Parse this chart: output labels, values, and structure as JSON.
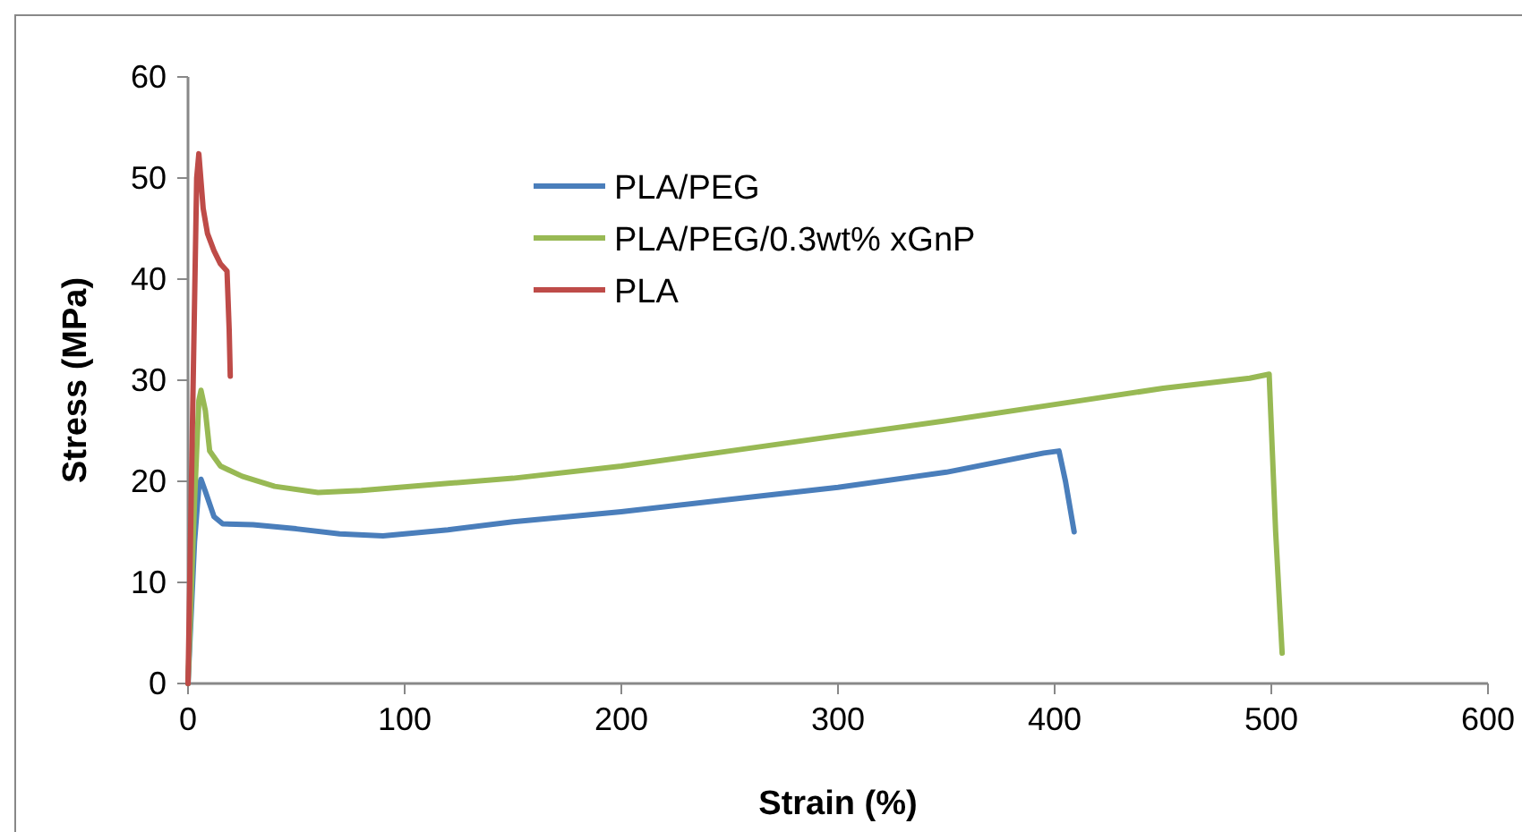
{
  "chart_data": {
    "type": "line",
    "xlabel": "Strain (%)",
    "ylabel": "Stress (MPa)",
    "xlim": [
      0,
      600
    ],
    "xticks": [
      0,
      100,
      200,
      300,
      400,
      500,
      600
    ],
    "ylim": [
      0,
      60
    ],
    "yticks": [
      0,
      10,
      20,
      30,
      40,
      50,
      60
    ],
    "grid": false,
    "legend": "top",
    "series": [
      {
        "name": "PLA/PEG",
        "color": "#4a7ebb",
        "x": [
          0,
          3,
          5,
          6,
          8,
          12,
          16,
          30,
          50,
          70,
          90,
          120,
          150,
          200,
          250,
          300,
          350,
          395,
          402,
          405,
          409
        ],
        "values": [
          0,
          14,
          19.5,
          20.2,
          19,
          16.5,
          15.8,
          15.7,
          15.3,
          14.8,
          14.6,
          15.2,
          16,
          17,
          18.2,
          19.4,
          20.9,
          22.8,
          23,
          20,
          15
        ]
      },
      {
        "name": "PLA/PEG/0.3wt% xGnP",
        "color": "#98b954",
        "x": [
          0,
          3,
          5,
          6,
          8,
          10,
          15,
          25,
          40,
          60,
          80,
          120,
          150,
          200,
          250,
          300,
          350,
          400,
          450,
          490,
          499,
          502,
          505
        ],
        "values": [
          0,
          18,
          28,
          29,
          27,
          23,
          21.5,
          20.5,
          19.5,
          18.9,
          19.1,
          19.8,
          20.3,
          21.5,
          23,
          24.5,
          26,
          27.6,
          29.2,
          30.2,
          30.6,
          15,
          3
        ]
      },
      {
        "name": "PLA",
        "color": "#be4b48",
        "x": [
          0,
          2,
          4,
          5,
          7,
          9,
          12,
          15,
          18,
          19,
          19.5
        ],
        "values": [
          0,
          25,
          50,
          52.4,
          47,
          44.5,
          42.8,
          41.5,
          40.8,
          35,
          30.4
        ]
      }
    ]
  }
}
